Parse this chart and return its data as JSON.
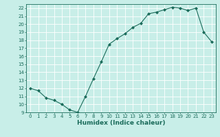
{
  "x": [
    0,
    1,
    2,
    3,
    4,
    5,
    6,
    7,
    8,
    9,
    10,
    11,
    12,
    13,
    14,
    15,
    16,
    17,
    18,
    19,
    20,
    21,
    22,
    23
  ],
  "y": [
    12.0,
    11.7,
    10.8,
    10.5,
    10.0,
    9.3,
    9.0,
    11.0,
    13.2,
    15.3,
    17.5,
    18.2,
    18.8,
    19.6,
    20.1,
    21.3,
    21.5,
    21.8,
    22.1,
    22.0,
    21.7,
    22.0,
    19.0,
    17.8
  ],
  "xlabel": "Humidex (Indice chaleur)",
  "ylim": [
    9,
    22.5
  ],
  "yticks": [
    9,
    10,
    11,
    12,
    13,
    14,
    15,
    16,
    17,
    18,
    19,
    20,
    21,
    22
  ],
  "xticks": [
    0,
    1,
    2,
    3,
    4,
    5,
    6,
    7,
    8,
    9,
    10,
    11,
    12,
    13,
    14,
    15,
    16,
    17,
    18,
    19,
    20,
    21,
    22,
    23
  ],
  "line_color": "#1a6b5a",
  "marker": "D",
  "marker_size": 2,
  "bg_color": "#c8eee8",
  "grid_color": "#ffffff",
  "tick_fontsize": 5,
  "xlabel_fontsize": 6.5,
  "xlim": [
    -0.5,
    23.5
  ]
}
